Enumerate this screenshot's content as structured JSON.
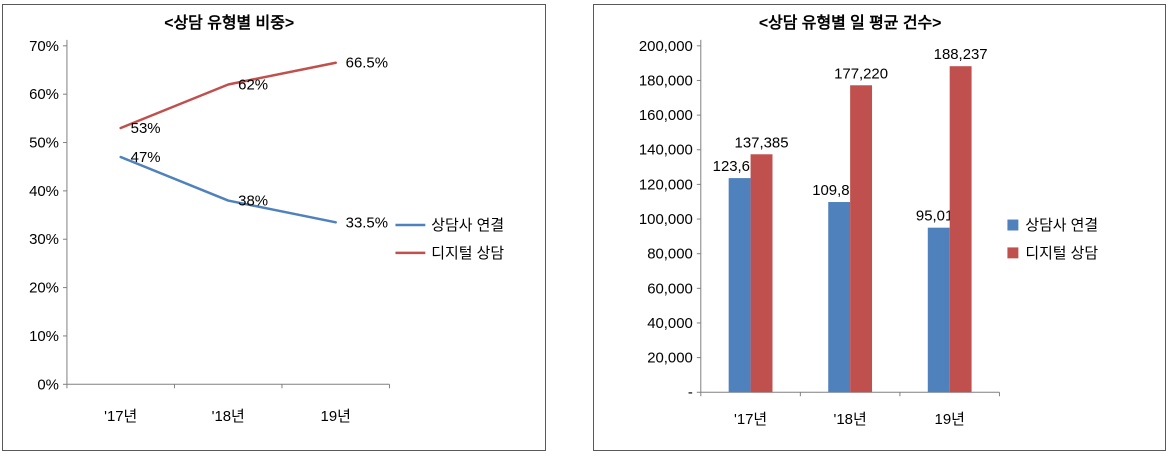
{
  "chart_data": [
    {
      "type": "line",
      "title": "<상담 유형별 비중>",
      "categories": [
        "'17년",
        "'18년",
        "19년"
      ],
      "series": [
        {
          "name": "상담사 연결",
          "color": "#4F81BD",
          "values": [
            47,
            38,
            33.5
          ],
          "point_labels": [
            "47%",
            "38%",
            "33.5%"
          ]
        },
        {
          "name": "디지털 상담",
          "color": "#C0504D",
          "values": [
            53,
            62,
            66.5
          ],
          "point_labels": [
            "53%",
            "62%",
            "66.5%"
          ]
        }
      ],
      "xlabel": "",
      "ylabel": "",
      "ylim": [
        0,
        70
      ],
      "ytick_step": 10,
      "ytick_labels": [
        "70%",
        "60%",
        "50%",
        "40%",
        "30%",
        "20%",
        "10%",
        "0%"
      ],
      "grid": false,
      "legend_position": "right"
    },
    {
      "type": "bar",
      "title": "<상담 유형별 일 평균 건수>",
      "categories": [
        "'17년",
        "'18년",
        "19년"
      ],
      "series": [
        {
          "name": "상담사 연결",
          "color": "#4F81BD",
          "values": [
            123631,
            109818,
            95012
          ],
          "point_labels": [
            "123,631",
            "109,818",
            "95,012"
          ]
        },
        {
          "name": "디지털 상담",
          "color": "#C0504D",
          "values": [
            137385,
            177220,
            188237
          ],
          "point_labels": [
            "137,385",
            "177,220",
            "188,237"
          ]
        }
      ],
      "xlabel": "",
      "ylabel": "",
      "ylim": [
        0,
        200000
      ],
      "ytick_step": 20000,
      "ytick_labels": [
        "200,000",
        "180,000",
        "160,000",
        "140,000",
        "120,000",
        "100,000",
        "80,000",
        "60,000",
        "40,000",
        "20,000",
        "-"
      ],
      "grid": false,
      "legend_position": "right"
    }
  ],
  "colors": {
    "axis": "#808080",
    "border": "#595959",
    "text": "#000000",
    "series_blue": "#4F81BD",
    "series_red": "#C0504D"
  }
}
